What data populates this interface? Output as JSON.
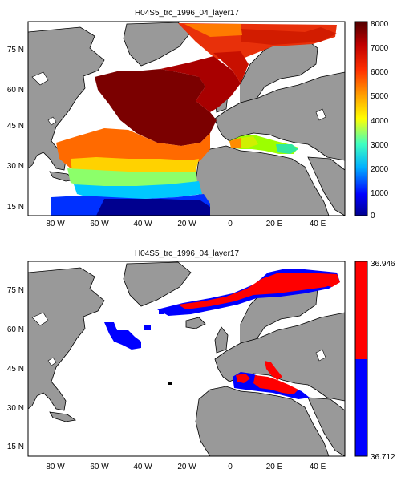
{
  "panels": [
    {
      "title": "H04S5_trc_1996_04_layer17",
      "lat_ticks": [
        "15 N",
        "30 N",
        "45 N",
        "60 N",
        "75 N"
      ],
      "lon_ticks": [
        "80 W",
        "60 W",
        "40 W",
        "20 W",
        "0",
        "20 E",
        "40 E"
      ],
      "colorbar": {
        "type": "continuous",
        "labels": [
          "0",
          "1000",
          "2000",
          "3000",
          "4000",
          "5000",
          "6000",
          "7000",
          "8000"
        ],
        "colormap": "jet-like"
      }
    },
    {
      "title": "H04S5_trc_1996_04_layer17",
      "lat_ticks": [
        "15 N",
        "30 N",
        "45 N",
        "60 N",
        "75 N"
      ],
      "lon_ticks": [
        "80 W",
        "60 W",
        "40 W",
        "20 W",
        "0",
        "20 E",
        "40 E"
      ],
      "colorbar": {
        "type": "two-class",
        "labels": [
          "36.946",
          "36.712"
        ],
        "colors": [
          "#ff0000",
          "#0000ff"
        ]
      }
    }
  ],
  "colors": {
    "land": "#999999",
    "ocean_nodata": "#ffffff",
    "frame": "#000000"
  }
}
